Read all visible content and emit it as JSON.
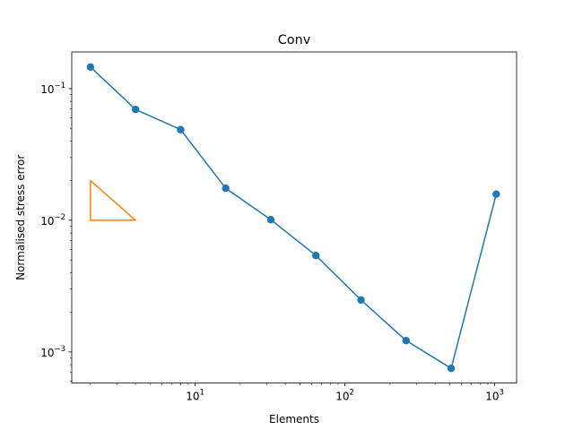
{
  "chart_data": {
    "type": "line",
    "title": "Conv",
    "xlabel": "Elements",
    "ylabel": "Normalised stress error",
    "xscale": "log",
    "yscale": "log",
    "xlim": [
      1.5,
      1400
    ],
    "ylim": [
      0.00058,
      0.19
    ],
    "grid": false,
    "legend": "none",
    "x_ticks": [
      {
        "value": 10,
        "base": "10",
        "exp": "1"
      },
      {
        "value": 100,
        "base": "10",
        "exp": "2"
      },
      {
        "value": 1000,
        "base": "10",
        "exp": "3"
      }
    ],
    "y_ticks": [
      {
        "value": 0.001,
        "base": "10",
        "exp": "−3"
      },
      {
        "value": 0.01,
        "base": "10",
        "exp": "−2"
      },
      {
        "value": 0.1,
        "base": "10",
        "exp": "−1"
      }
    ],
    "series": [
      {
        "color": "#1f77b4",
        "marker": "circle",
        "x": [
          2,
          4,
          8,
          16,
          32,
          64,
          128,
          256,
          512,
          1024
        ],
        "y": [
          0.146,
          0.0695,
          0.0488,
          0.0175,
          0.0101,
          0.0054,
          0.00248,
          0.00122,
          0.00075,
          0.0158
        ]
      },
      {
        "color": "#ff7f0e",
        "marker": "none",
        "x": [
          2,
          4,
          2,
          2
        ],
        "y": [
          0.01,
          0.01,
          0.02,
          0.01
        ]
      }
    ]
  }
}
